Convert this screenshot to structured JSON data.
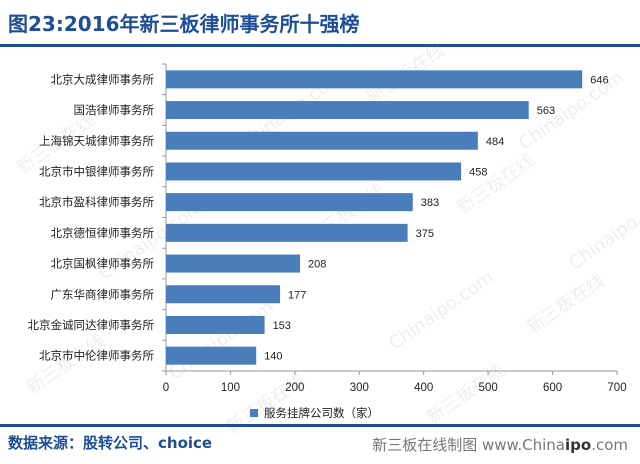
{
  "header": {
    "title": "图23:2016年新三板律师事务所十强榜"
  },
  "footer": {
    "source": "数据来源：股转公司、choice",
    "credit_prefix": "新三板在线制图 www.China",
    "credit_bold": "ipo",
    "credit_suffix": ".com"
  },
  "watermark": {
    "text_cn": "新三板在线",
    "text_en": "Chinaipo.com"
  },
  "colors": {
    "bar": "#4a7ebb",
    "brand": "#1f4e96"
  },
  "chart_data": {
    "type": "bar",
    "orientation": "horizontal",
    "categories": [
      "北京大成律师事务所",
      "国浩律师事务所",
      "上海锦天城律师事务所",
      "北京市中银律师事务所",
      "北京市盈科律师事务所",
      "北京德恒律师事务所",
      "北京国枫律师事务所",
      "广东华商律师事务所",
      "北京金诚同达律师事务所",
      "北京市中伦律师事务所"
    ],
    "series": [
      {
        "name": "服务挂牌公司数（家）",
        "values": [
          646,
          563,
          484,
          458,
          383,
          375,
          208,
          177,
          153,
          140
        ]
      }
    ],
    "xlim": [
      0,
      700
    ],
    "xticks": [
      0,
      100,
      200,
      300,
      400,
      500,
      600,
      700
    ],
    "legend_position": "bottom",
    "grid": false,
    "data_labels": true
  }
}
